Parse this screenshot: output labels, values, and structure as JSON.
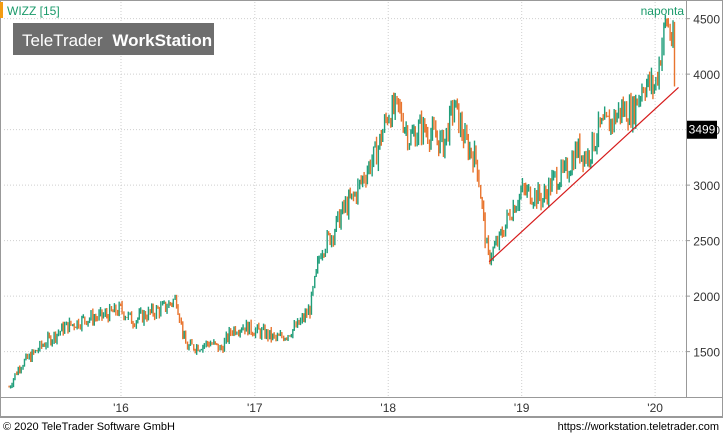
{
  "header": {
    "symbol_label": "WIZZ [15]",
    "interval_label": "naponta",
    "watermark_light": "TeleTrader",
    "watermark_bold": "WorkStation"
  },
  "footer": {
    "copyright": "© 2020 TeleTrader Software GmbH",
    "url": "https://workstation.teletrader.com"
  },
  "colors": {
    "up": "#1f9e7a",
    "down": "#e8742e",
    "trendline": "#d61b1b",
    "accent": "#f39c12",
    "label_green": "#1a9a6a",
    "last_price_bg": "#000000",
    "watermark_bg": "#6e6e6e"
  },
  "chart_data": {
    "type": "line",
    "style": "colored price bars (up/down)",
    "title": "WIZZ [15]",
    "interval": "naponta",
    "ylim": [
      1100,
      4650
    ],
    "y_ticks": [
      1500,
      2000,
      2500,
      3000,
      3500,
      4000,
      4500
    ],
    "x_ticks": [
      "'16",
      "'17",
      "'18",
      "'19",
      "'20"
    ],
    "grid": true,
    "last_price": "3499",
    "series": [
      {
        "x": [
          "2015-03-01",
          "2015-04-01",
          "2015-05-01",
          "2015-06-01",
          "2015-07-01",
          "2015-08-01",
          "2015-09-01",
          "2015-10-01",
          "2015-11-01",
          "2015-12-01",
          "2016-01-01",
          "2016-02-01",
          "2016-03-01",
          "2016-04-01",
          "2016-05-01",
          "2016-06-01",
          "2016-06-24",
          "2016-07-01",
          "2016-08-01",
          "2016-09-01",
          "2016-10-01",
          "2016-11-01",
          "2016-12-01",
          "2017-01-01",
          "2017-02-01",
          "2017-03-01",
          "2017-04-01",
          "2017-05-01",
          "2017-06-01",
          "2017-07-01",
          "2017-08-01",
          "2017-09-01",
          "2017-10-01",
          "2017-11-01",
          "2017-12-01",
          "2018-01-01",
          "2018-02-01",
          "2018-03-01",
          "2018-04-01",
          "2018-05-01",
          "2018-06-01",
          "2018-07-01",
          "2018-08-01",
          "2018-09-01",
          "2018-10-01",
          "2018-11-01",
          "2018-12-01",
          "2019-01-01",
          "2019-02-01",
          "2019-03-01",
          "2019-04-01",
          "2019-05-01",
          "2019-06-01",
          "2019-07-01",
          "2019-08-01",
          "2019-09-01",
          "2019-10-01",
          "2019-11-01",
          "2019-12-01",
          "2020-01-01",
          "2020-02-01",
          "2020-02-20",
          "2020-02-28"
        ],
        "values": [
          1180,
          1380,
          1460,
          1560,
          1640,
          1720,
          1760,
          1800,
          1810,
          1840,
          1880,
          1780,
          1820,
          1860,
          1900,
          1980,
          1580,
          1540,
          1550,
          1580,
          1520,
          1700,
          1730,
          1690,
          1660,
          1610,
          1660,
          1740,
          1880,
          2420,
          2560,
          2780,
          2900,
          3120,
          3300,
          3650,
          3680,
          3420,
          3520,
          3460,
          3360,
          3720,
          3380,
          3220,
          2340,
          2500,
          2760,
          2940,
          2920,
          2880,
          3060,
          3100,
          3320,
          3260,
          3500,
          3560,
          3680,
          3660,
          3920,
          3880,
          4500,
          4250,
          3480
        ]
      }
    ],
    "trendline": {
      "x": [
        "2018-10-04",
        "2020-03-05"
      ],
      "y": [
        2310,
        3880
      ]
    }
  }
}
